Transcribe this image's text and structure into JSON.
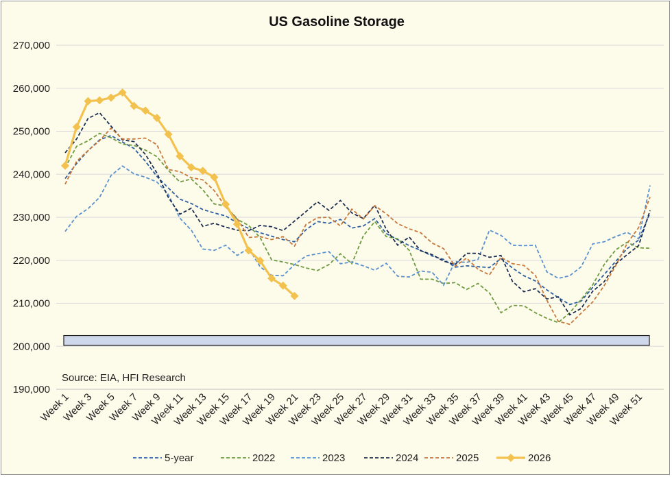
{
  "chart_data": {
    "type": "line",
    "title": "US Gasoline Storage",
    "source": "Source: EIA, HFI Research",
    "ylim": [
      190000,
      270000
    ],
    "y_ticks": [
      "190,000",
      "200,000",
      "210,000",
      "220,000",
      "230,000",
      "240,000",
      "250,000",
      "260,000",
      "270,000"
    ],
    "y_tick_values": [
      190000,
      200000,
      210000,
      220000,
      230000,
      240000,
      250000,
      260000,
      270000
    ],
    "x_tick_labels": [
      "Week 1",
      "Week 3",
      "Week 5",
      "Week 7",
      "Week 9",
      "Week 11",
      "Week 13",
      "Week 15",
      "Week 17",
      "Week 19",
      "Week 21",
      "Week 23",
      "Week 25",
      "Week 27",
      "Week 29",
      "Week 31",
      "Week 33",
      "Week 35",
      "Week 37",
      "Week 39",
      "Week 41",
      "Week 43",
      "Week 45",
      "Week 47",
      "Week 49",
      "Week 51"
    ],
    "x_tick_weeks": [
      1,
      3,
      5,
      7,
      9,
      11,
      13,
      15,
      17,
      19,
      21,
      23,
      25,
      27,
      29,
      31,
      33,
      35,
      37,
      39,
      41,
      43,
      45,
      47,
      49,
      51
    ],
    "grid": "horizontal",
    "legend_position": "bottom",
    "series": [
      {
        "name": "5-year",
        "color": "#2e5fa1",
        "style": "dashed",
        "x": [
          1,
          2,
          3,
          4,
          5,
          6,
          7,
          8,
          9,
          10,
          11,
          12,
          13,
          14,
          15,
          16,
          17,
          18,
          19,
          20,
          21,
          22,
          23,
          24,
          25,
          26,
          27,
          28,
          29,
          30,
          31,
          32,
          33,
          34,
          35,
          36,
          37,
          38,
          39,
          40,
          41,
          42,
          43,
          44,
          45,
          46,
          47,
          48,
          49,
          50,
          51,
          52
        ],
        "y": [
          239000,
          242500,
          245500,
          248000,
          249000,
          247500,
          246000,
          243000,
          239500,
          236800,
          234200,
          233200,
          231800,
          231000,
          230300,
          228700,
          227400,
          226400,
          225600,
          224800,
          224300,
          227100,
          229000,
          228600,
          229500,
          227500,
          228000,
          229700,
          226200,
          224800,
          223400,
          222300,
          221000,
          220200,
          218400,
          218700,
          218500,
          218300,
          220400,
          218200,
          216400,
          215200,
          213100,
          211300,
          209700,
          210500,
          213700,
          216700,
          219700,
          222700,
          224700,
          231000
        ]
      },
      {
        "name": "2022",
        "color": "#6e9a40",
        "style": "dashed",
        "x": [
          1,
          2,
          3,
          4,
          5,
          6,
          7,
          8,
          9,
          10,
          11,
          12,
          13,
          14,
          15,
          16,
          17,
          18,
          19,
          20,
          21,
          22,
          23,
          24,
          25,
          26,
          27,
          28,
          29,
          30,
          31,
          32,
          33,
          34,
          35,
          36,
          37,
          38,
          39,
          40,
          41,
          42,
          43,
          44,
          45,
          46,
          47,
          48,
          49,
          50,
          51,
          52
        ],
        "y": [
          241500,
          246500,
          247800,
          249500,
          248500,
          247000,
          246700,
          245600,
          244100,
          240900,
          238200,
          238900,
          236400,
          233100,
          232600,
          229500,
          228100,
          225300,
          220100,
          219600,
          219000,
          218200,
          217600,
          219000,
          221500,
          219200,
          225700,
          229000,
          225500,
          225000,
          222300,
          215600,
          215600,
          214600,
          214800,
          213200,
          214600,
          212400,
          207800,
          209500,
          209400,
          207800,
          206500,
          205500,
          207800,
          210900,
          214300,
          219000,
          222400,
          224200,
          222900,
          222800
        ]
      },
      {
        "name": "2023",
        "color": "#5b91ce",
        "style": "dashed",
        "x": [
          1,
          2,
          3,
          4,
          5,
          6,
          7,
          8,
          9,
          10,
          11,
          12,
          13,
          14,
          15,
          16,
          17,
          18,
          19,
          20,
          21,
          22,
          23,
          24,
          25,
          26,
          27,
          28,
          29,
          30,
          31,
          32,
          33,
          34,
          35,
          36,
          37,
          38,
          39,
          40,
          41,
          42,
          43,
          44,
          45,
          46,
          47,
          48,
          49,
          50,
          51,
          52
        ],
        "y": [
          226700,
          230200,
          232000,
          234600,
          239700,
          241900,
          240100,
          239300,
          238200,
          235300,
          229800,
          227000,
          222600,
          222300,
          223500,
          221100,
          222800,
          218500,
          216500,
          216400,
          219000,
          221000,
          221500,
          222000,
          219200,
          219600,
          218700,
          217700,
          219300,
          216300,
          216100,
          217500,
          217200,
          214200,
          219700,
          219500,
          220200,
          227000,
          225800,
          223500,
          223400,
          223500,
          217300,
          215800,
          216400,
          218500,
          223800,
          224300,
          225500,
          226500,
          225000,
          237400
        ]
      },
      {
        "name": "2024",
        "color": "#1c2e52",
        "style": "dashed",
        "x": [
          1,
          2,
          3,
          4,
          5,
          6,
          7,
          8,
          9,
          10,
          11,
          12,
          13,
          14,
          15,
          16,
          17,
          18,
          19,
          20,
          21,
          22,
          23,
          24,
          25,
          26,
          27,
          28,
          29,
          30,
          31,
          32,
          33,
          34,
          35,
          36,
          37,
          38,
          39,
          40,
          41,
          42,
          43,
          44,
          45,
          46,
          47,
          48,
          49,
          50,
          51,
          52
        ],
        "y": [
          245000,
          248200,
          253000,
          254300,
          251200,
          248000,
          247600,
          244600,
          240300,
          234600,
          230700,
          232100,
          227900,
          228600,
          227700,
          227000,
          226900,
          228100,
          227800,
          226900,
          229100,
          231300,
          233600,
          231600,
          233900,
          231000,
          229700,
          232800,
          227200,
          223500,
          225400,
          222200,
          221300,
          219800,
          219000,
          221600,
          221600,
          220700,
          221100,
          215100,
          212700,
          213400,
          211000,
          211500,
          207300,
          208800,
          212800,
          215000,
          219100,
          221300,
          223400,
          231600
        ]
      },
      {
        "name": "2025",
        "color": "#c8773a",
        "style": "dashed",
        "x": [
          1,
          2,
          3,
          4,
          5,
          6,
          7,
          8,
          9,
          10,
          11,
          12,
          13,
          14,
          15,
          16,
          17,
          18,
          19,
          20,
          21,
          22,
          23,
          24,
          25,
          26,
          27,
          28,
          29,
          30,
          31,
          32,
          33,
          34,
          35,
          36,
          37,
          38,
          39,
          40,
          41,
          42,
          43,
          44,
          45,
          46,
          47,
          48,
          49,
          50,
          51,
          52
        ],
        "y": [
          237700,
          243000,
          245500,
          247800,
          250700,
          248200,
          248200,
          248400,
          246900,
          241100,
          240600,
          239200,
          238700,
          236200,
          232400,
          229700,
          225300,
          225500,
          224800,
          225500,
          223300,
          228300,
          229900,
          230000,
          228000,
          231900,
          229600,
          232700,
          230800,
          228500,
          227300,
          226400,
          224000,
          222700,
          218600,
          220500,
          217900,
          216600,
          220700,
          219200,
          218800,
          216500,
          210700,
          205800,
          205100,
          207700,
          210300,
          214100,
          218700,
          223900,
          227600,
          234700
        ]
      },
      {
        "name": "2026",
        "color": "#f2c14e",
        "style": "solid_diamond",
        "x": [
          1,
          2,
          3,
          4,
          5,
          6,
          7,
          8,
          9,
          10,
          11,
          12,
          13,
          14,
          15,
          16,
          17,
          18,
          19,
          20,
          21
        ],
        "y": [
          242000,
          251000,
          257000,
          257200,
          257800,
          259000,
          255900,
          254800,
          253100,
          249300,
          244200,
          241600,
          240800,
          239300,
          233000,
          228400,
          222300,
          219900,
          215800,
          214100,
          211700
        ]
      }
    ],
    "highlight_band": {
      "y_min": 200200,
      "y_max": 202500,
      "color": "#cfd8ea"
    }
  }
}
